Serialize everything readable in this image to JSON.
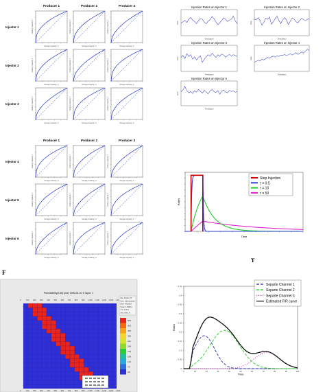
{
  "grid_top": {
    "col_titles": [
      "Producer 1",
      "Producer 2",
      "Producer 3"
    ],
    "row_labels": [
      "Injector 1",
      "Injector 2",
      "Injector 3"
    ],
    "xlabel": "Storage Capacity, C",
    "ylabel": "Flowing Capacity, F"
  },
  "grid_bottom": {
    "col_titles": [
      "Producer 1",
      "Producer 2",
      "Producer 3"
    ],
    "row_labels": [
      "Injector 4",
      "Injector 5",
      "Injector 6"
    ],
    "xlabel": "Storage Capacity, C",
    "ylabel": "Flowing Capacity, F"
  },
  "panel_letters": {
    "f": "F",
    "g": "T"
  },
  "chart_data": [
    {
      "type": "line",
      "id": "injection-rates",
      "panels": [
        {
          "title": "Injection Rates on Injector 1",
          "xlabel": "Time(days)",
          "ylabel": "Rate",
          "xlim": [
            0,
            300
          ],
          "ylim": [
            0,
            150
          ],
          "values": [
            72,
            80,
            88,
            76,
            94,
            105,
            90,
            82,
            70,
            86,
            100,
            95,
            78,
            68,
            84,
            92,
            110,
            98,
            80,
            64,
            74,
            88,
            102,
            94,
            82,
            90,
            96,
            112,
            84,
            70
          ]
        },
        {
          "title": "Injection Rates on Injector 2",
          "xlabel": "Time(days)",
          "ylabel": "Rate",
          "xlim": [
            0,
            300
          ],
          "ylim": [
            0,
            150
          ],
          "values": [
            96,
            92,
            104,
            88,
            60,
            78,
            100,
            94,
            108,
            66,
            80,
            98,
            112,
            86,
            70,
            92,
            104,
            90,
            64,
            84,
            102,
            96,
            80,
            74,
            88,
            100,
            92,
            86,
            94,
            98
          ]
        },
        {
          "title": "Injection Rates on Injector 3",
          "xlabel": "Time(days)",
          "ylabel": "Rate",
          "xlim": [
            0,
            300
          ],
          "ylim": [
            0,
            150
          ],
          "values": [
            80,
            92,
            74,
            102,
            86,
            96,
            70,
            84,
            66,
            78,
            90,
            52,
            70,
            84,
            96,
            88,
            104,
            92,
            80,
            96,
            86,
            100,
            94,
            82,
            90,
            98,
            88,
            96,
            92,
            86
          ]
        },
        {
          "title": "Injection Rates on Injector 4",
          "xlabel": "Time(days)",
          "ylabel": "Rate",
          "xlim": [
            0,
            300
          ],
          "ylim": [
            0,
            150
          ],
          "values": [
            52,
            58,
            64,
            60,
            70,
            66,
            74,
            80,
            76,
            84,
            88,
            82,
            90,
            86,
            94,
            92,
            98,
            90,
            96,
            102,
            94,
            100,
            108,
            98,
            104,
            112,
            106,
            116,
            128,
            120
          ]
        },
        {
          "title": "Injection Rates on Injector 5",
          "xlabel": "Time(days)",
          "ylabel": "Rate",
          "xlim": [
            0,
            300
          ],
          "ylim": [
            0,
            150
          ],
          "values": [
            84,
            96,
            118,
            90,
            78,
            86,
            74,
            92,
            82,
            100,
            88,
            76,
            94,
            84,
            72,
            90,
            98,
            86,
            80,
            92,
            70,
            88,
            96,
            84,
            78,
            94,
            86,
            90,
            82,
            88
          ]
        }
      ]
    },
    {
      "type": "line",
      "id": "step-response",
      "xlabel": "Time",
      "ylabel": "Rates",
      "xlim": [
        0,
        100
      ],
      "ylim": [
        0,
        1
      ],
      "legend_position": "top-right",
      "step": {
        "name": "Step Injection",
        "color": "#cc0000",
        "on": [
          5,
          15
        ],
        "high": 0.95
      },
      "impulse_color": "#5b1570",
      "series": [
        {
          "name": "τ = 0.5",
          "tau": 0.5,
          "color": "#2c3fd6"
        },
        {
          "name": "τ = 10",
          "tau": 10,
          "color": "#22cc22"
        },
        {
          "name": "τ = 50",
          "tau": 50,
          "color": "#dd22cc"
        }
      ]
    },
    {
      "type": "heatmap",
      "id": "permeability",
      "title": "Permeability(I-dir) (md) 1990-01-01 K layer: 1",
      "xlim": [
        0,
        1400
      ],
      "ylim": [
        0,
        1400
      ],
      "xticks": [
        0,
        100,
        200,
        300,
        400,
        500,
        600,
        700,
        800,
        900,
        1000,
        1100,
        1200,
        1300,
        1400
      ],
      "grid_n": 20,
      "band": {
        "start_col": [
          1,
          2
        ],
        "slope": 1.5,
        "width": 3,
        "color": "#e8261e"
      },
      "background_color": "#2f2fd6",
      "colorbar": {
        "colors": [
          "#e8261e",
          "#f36a12",
          "#f7a41a",
          "#f4d52a",
          "#d7e62a",
          "#8fdc28",
          "#2ecc3a",
          "#1fc0a0",
          "#29a8e0",
          "#2f6fe0",
          "#2f2fd6"
        ],
        "labels": [
          "500",
          "453",
          "405",
          "356",
          "311",
          "264",
          "216",
          "169",
          "122",
          "75",
          "28"
        ]
      },
      "info_lines": [
        "File: 40x40_ST",
        "User: Administrator",
        "Date: 4/6/2014",
        "Scale: 1:8999.2",
        "Y/X: 1.00:1",
        "Axis Units: ft"
      ]
    },
    {
      "type": "line",
      "id": "channels",
      "xlabel": "Time",
      "ylabel": "Rates",
      "xlim": [
        0,
        100
      ],
      "ylim": [
        0,
        0.45
      ],
      "yticks": [
        0,
        0.05,
        0.1,
        0.15,
        0.2,
        0.25,
        0.3,
        0.35,
        0.4,
        0.45
      ],
      "xticks": [
        0,
        10,
        20,
        30,
        40,
        50,
        60,
        70,
        80,
        90,
        100
      ],
      "legend_position": "top-right",
      "series": [
        {
          "name": "Separte Channel 1",
          "color": "#2a2aa8",
          "dash": "4,2",
          "mu": 18,
          "sigma": 9,
          "amp": 0.18
        },
        {
          "name": "Separte Channel 2",
          "color": "#22cc22",
          "dash": "4,2",
          "mu": 36,
          "sigma": 13,
          "amp": 0.21
        },
        {
          "name": "Separte Channel 3",
          "color": "#cc22cc",
          "dash": "1,2",
          "mu": 73,
          "sigma": 11,
          "amp": 0.09
        },
        {
          "name": "Estimated FIR curve",
          "color": "#111111",
          "dash": "",
          "sum": true
        }
      ]
    }
  ]
}
